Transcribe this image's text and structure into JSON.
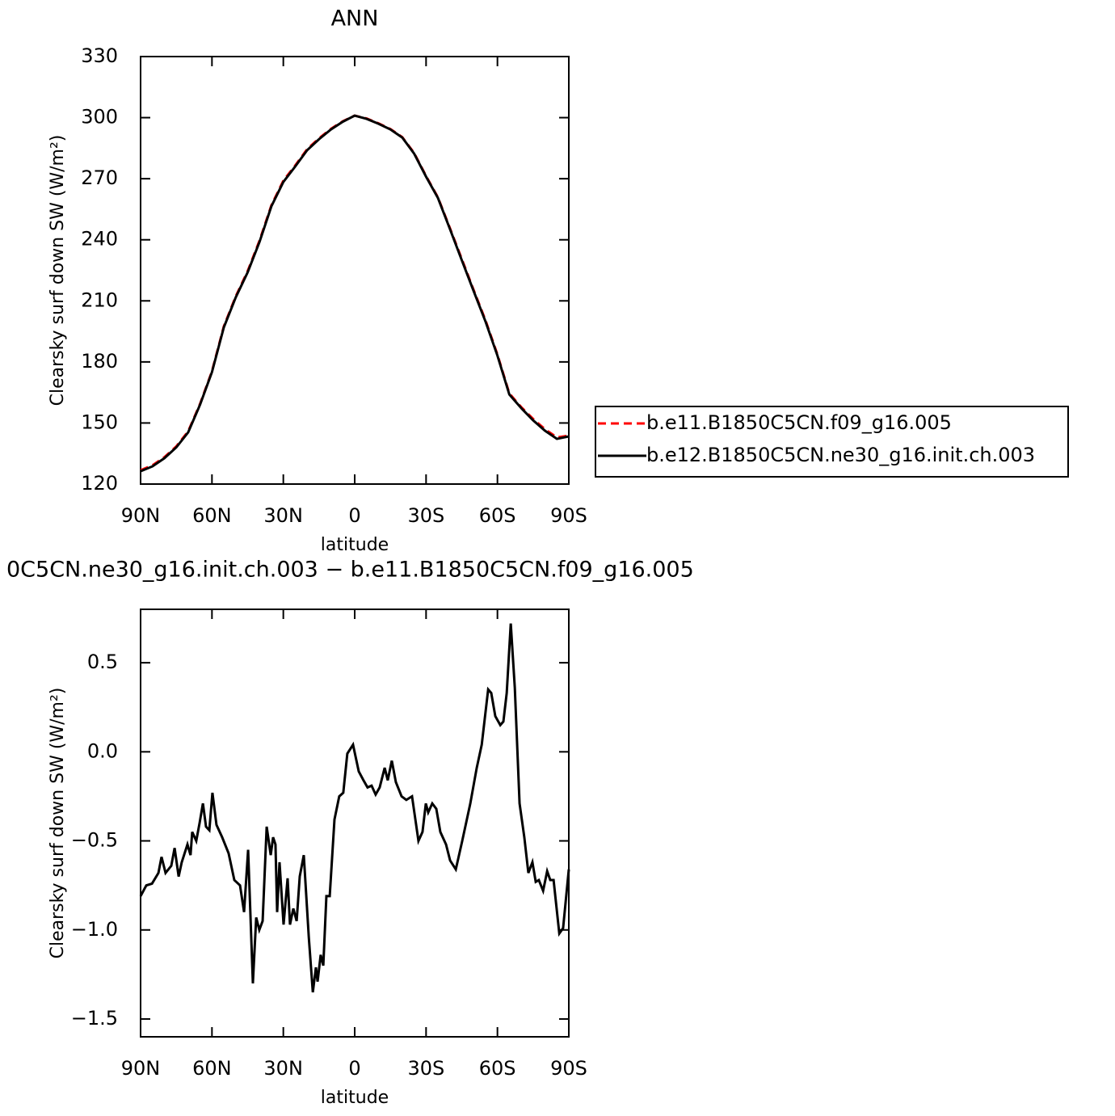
{
  "chart_data": [
    {
      "type": "line",
      "title": "ANN",
      "xlabel": "latitude",
      "ylabel": "Clearsky surf down SW (W/m²)",
      "x": [
        90,
        85,
        80,
        75,
        70,
        65,
        60,
        55,
        50,
        45,
        40,
        35,
        30,
        25,
        20,
        15,
        10,
        5,
        0,
        -5,
        -10,
        -15,
        -20,
        -25,
        -30,
        -35,
        -40,
        -45,
        -50,
        -55,
        -60,
        -65,
        -70,
        -75,
        -80,
        -85,
        -90
      ],
      "series": [
        {
          "name": "b.e11.B1850C5CN.f09_g16.005",
          "color": "#ff0000",
          "linestyle": "dashed",
          "values": [
            126.8,
            129.2,
            133.2,
            138.5,
            145.9,
            159.4,
            175.4,
            197.5,
            212.2,
            224.6,
            239.6,
            257,
            269,
            276.5,
            284.5,
            289.8,
            294.5,
            298.2,
            301,
            299.6,
            297.2,
            294.4,
            290.4,
            282.6,
            271.3,
            260.8,
            245.8,
            230.6,
            215.3,
            200.4,
            183.6,
            164.5,
            157.8,
            152,
            146.9,
            142.9,
            143.8
          ]
        },
        {
          "name": "b.e12.B1850C5CN.ne30_g16.init.ch.003",
          "color": "#000000",
          "linestyle": "solid",
          "values": [
            126.3,
            128.7,
            132.7,
            138,
            145.4,
            159,
            175,
            197,
            211.7,
            224,
            239,
            256.5,
            268.4,
            276,
            284,
            289.4,
            294.2,
            298,
            301,
            299.4,
            297,
            294.2,
            290.2,
            282.3,
            271,
            260.5,
            245.4,
            230,
            214.8,
            199.8,
            183.1,
            164,
            157.3,
            151.3,
            146.2,
            142.2,
            143.4
          ]
        }
      ],
      "xlim": [
        90,
        -90
      ],
      "xticks": [
        {
          "value": 90,
          "label": "90N"
        },
        {
          "value": 60,
          "label": "60N"
        },
        {
          "value": 30,
          "label": "30N"
        },
        0,
        {
          "value": -30,
          "label": "30S"
        },
        {
          "value": -60,
          "label": "60S"
        },
        {
          "value": -90,
          "label": "90S"
        }
      ],
      "ylim": [
        120,
        330
      ],
      "yticks": [
        120,
        150,
        180,
        210,
        240,
        270,
        300,
        330
      ],
      "legend": "outside-right"
    },
    {
      "type": "line",
      "title": "0C5CN.ne30_g16.init.ch.003 − b.e11.B1850C5CN.f09_g16.005",
      "xlabel": "latitude",
      "ylabel": "Clearsky surf down SW (W/m²)",
      "x": [
        90,
        87.6,
        85.2,
        82.5,
        81.2,
        79.5,
        77.1,
        75.7,
        74,
        72.7,
        70.3,
        69,
        68.3,
        66.6,
        65.2,
        63.8,
        62.5,
        61.1,
        59.8,
        58.1,
        55.7,
        53,
        50.6,
        48.2,
        46.5,
        44.8,
        42.8,
        41.4,
        40.1,
        38.7,
        37,
        35.3,
        34.3,
        33.3,
        32.6,
        31.6,
        29.9,
        28.2,
        27.2,
        25.8,
        24.4,
        23.1,
        21.4,
        19.3,
        17.6,
        16.3,
        15.6,
        14.3,
        13.2,
        11.9,
        10.5,
        8.5,
        6.5,
        4.8,
        3.1,
        0.7,
        -1.7,
        -3.7,
        -5.4,
        -7.1,
        -8.8,
        -10.5,
        -12.6,
        -13.9,
        -15.6,
        -17.3,
        -19.7,
        -21.7,
        -24.1,
        -26.8,
        -28.5,
        -29.9,
        -30.9,
        -32.6,
        -34.3,
        -36,
        -38.4,
        -40.1,
        -42.5,
        -45.2,
        -48.6,
        -51.3,
        -53.4,
        -56.1,
        -57.4,
        -59.1,
        -61.2,
        -62.5,
        -63.9,
        -65.6,
        -67.3,
        -69.3,
        -71.3,
        -73,
        -74.7,
        -76.1,
        -77.4,
        -79.2,
        -80.9,
        -82.2,
        -83.6,
        -86,
        -87.6,
        -90
      ],
      "series": [
        {
          "color": "#000000",
          "linestyle": "solid",
          "values": [
            -0.81,
            -0.75,
            -0.74,
            -0.68,
            -0.59,
            -0.68,
            -0.64,
            -0.54,
            -0.7,
            -0.62,
            -0.52,
            -0.58,
            -0.45,
            -0.5,
            -0.4,
            -0.29,
            -0.42,
            -0.44,
            -0.23,
            -0.41,
            -0.48,
            -0.57,
            -0.72,
            -0.75,
            -0.9,
            -0.55,
            -1.3,
            -0.93,
            -1,
            -0.95,
            -0.42,
            -0.58,
            -0.48,
            -0.52,
            -0.9,
            -0.62,
            -0.97,
            -0.71,
            -0.97,
            -0.88,
            -0.95,
            -0.7,
            -0.58,
            -1.04,
            -1.35,
            -1.21,
            -1.29,
            -1.14,
            -1.2,
            -0.81,
            -0.81,
            -0.38,
            -0.25,
            -0.23,
            -0.01,
            0.04,
            -0.11,
            -0.16,
            -0.2,
            -0.19,
            -0.24,
            -0.2,
            -0.09,
            -0.16,
            -0.05,
            -0.17,
            -0.25,
            -0.27,
            -0.25,
            -0.5,
            -0.45,
            -0.29,
            -0.34,
            -0.29,
            -0.32,
            -0.45,
            -0.52,
            -0.61,
            -0.66,
            -0.5,
            -0.29,
            -0.09,
            0.04,
            0.35,
            0.33,
            0.2,
            0.15,
            0.17,
            0.33,
            0.72,
            0.36,
            -0.29,
            -0.48,
            -0.68,
            -0.62,
            -0.73,
            -0.72,
            -0.78,
            -0.67,
            -0.72,
            -0.72,
            -1.02,
            -0.99,
            -0.66
          ]
        }
      ],
      "xlim": [
        90,
        -90
      ],
      "xticks": [
        {
          "value": 90,
          "label": "90N"
        },
        {
          "value": 60,
          "label": "60N"
        },
        {
          "value": 30,
          "label": "30N"
        },
        0,
        {
          "value": -30,
          "label": "30S"
        },
        {
          "value": -60,
          "label": "60S"
        },
        {
          "value": -90,
          "label": "90S"
        }
      ],
      "ylim": [
        -1.6,
        0.8
      ],
      "yticks": [
        {
          "value": -1.5,
          "label": "−1.5"
        },
        {
          "value": -1,
          "label": "−1.0"
        },
        {
          "value": -0.5,
          "label": "−0.5"
        },
        {
          "value": 0,
          "label": "0.0"
        },
        0.5
      ]
    }
  ]
}
